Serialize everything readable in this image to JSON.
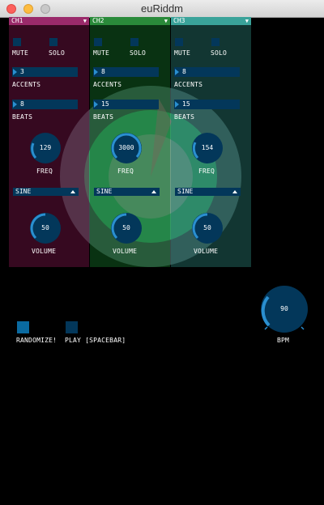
{
  "window": {
    "title": "euRiddm"
  },
  "colors": {
    "ch1": "#9a2a6a",
    "ch2": "#2a8a3a",
    "ch3": "#3aa39a",
    "control_bg": "#03375a",
    "accent": "#2a8fd0"
  },
  "channels": [
    {
      "name": "CH1",
      "mute_label": "MUTE",
      "solo_label": "SOLO",
      "accents": "3",
      "accents_label": "ACCENTS",
      "beats": "8",
      "beats_label": "BEATS",
      "freq": "129",
      "freq_label": "FREQ",
      "wave": "SINE",
      "volume": "50",
      "volume_label": "VOLUME"
    },
    {
      "name": "CH2",
      "mute_label": "MUTE",
      "solo_label": "SOLO",
      "accents": "8",
      "accents_label": "ACCENTS",
      "beats": "15",
      "beats_label": "BEATS",
      "freq": "3000",
      "freq_label": "FREQ",
      "wave": "SINE",
      "volume": "50",
      "volume_label": "VOLUME"
    },
    {
      "name": "CH3",
      "mute_label": "MUTE",
      "solo_label": "SOLO",
      "accents": "8",
      "accents_label": "ACCENTS",
      "beats": "15",
      "beats_label": "BEATS",
      "freq": "154",
      "freq_label": "FREQ",
      "wave": "SINE",
      "volume": "50",
      "volume_label": "VOLUME"
    }
  ],
  "bottom": {
    "randomize_label": "RANDOMIZE!",
    "play_label": "PLAY [SPACEBAR]",
    "bpm": "90",
    "bpm_label": "BPM"
  }
}
